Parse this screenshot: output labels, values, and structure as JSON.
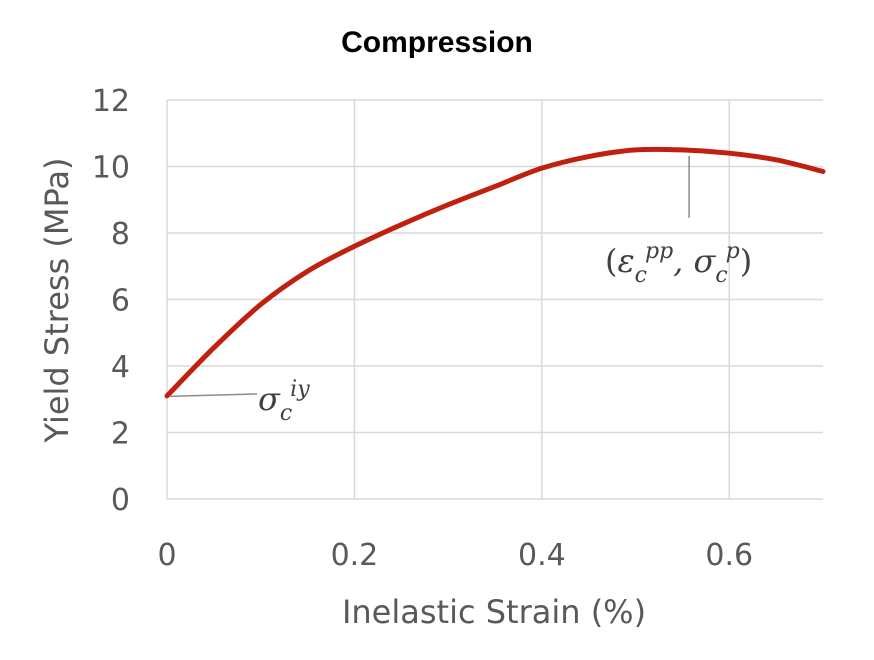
{
  "chart_data": {
    "type": "line",
    "title": "Compression",
    "xlabel": "Inelastic Strain (%)",
    "ylabel": "Yield Stress (MPa)",
    "xlim": [
      0,
      0.7
    ],
    "ylim": [
      0,
      12
    ],
    "xticks": [
      0,
      0.2,
      0.4,
      0.6
    ],
    "xtick_labels": [
      "0",
      "0.2",
      "0.4",
      "0.6"
    ],
    "yticks": [
      0,
      2,
      4,
      6,
      8,
      10,
      12
    ],
    "ytick_labels": [
      "0",
      "2",
      "4",
      "6",
      "8",
      "10",
      "12"
    ],
    "grid": true,
    "legend": "none",
    "series": [
      {
        "color": "#c0200f",
        "x": [
          0,
          0.05,
          0.1,
          0.15,
          0.2,
          0.25,
          0.3,
          0.35,
          0.4,
          0.45,
          0.5,
          0.55,
          0.6,
          0.65,
          0.7
        ],
        "y": [
          3.1,
          4.55,
          5.85,
          6.85,
          7.6,
          8.25,
          8.85,
          9.4,
          9.95,
          10.3,
          10.5,
          10.5,
          10.4,
          10.2,
          9.85
        ]
      }
    ],
    "annotations": [
      {
        "label": "initial-yield",
        "parts": [
          {
            "text": "σ",
            "role": "main"
          },
          {
            "text": "c",
            "role": "sub"
          },
          {
            "text": "iy",
            "role": "sup"
          }
        ],
        "point": [
          0,
          3.1
        ]
      },
      {
        "label": "peak",
        "parts": [
          {
            "text": "(",
            "role": "paren"
          },
          {
            "text": "ε",
            "role": "main"
          },
          {
            "text": "c",
            "role": "sub"
          },
          {
            "text": "pp",
            "role": "sup"
          },
          {
            "text": ", ",
            "role": "main"
          },
          {
            "text": "σ",
            "role": "main"
          },
          {
            "text": "c",
            "role": "sub"
          },
          {
            "text": "p",
            "role": "sup"
          },
          {
            "text": ")",
            "role": "paren"
          }
        ],
        "point": [
          0.555,
          10.5
        ]
      }
    ]
  }
}
